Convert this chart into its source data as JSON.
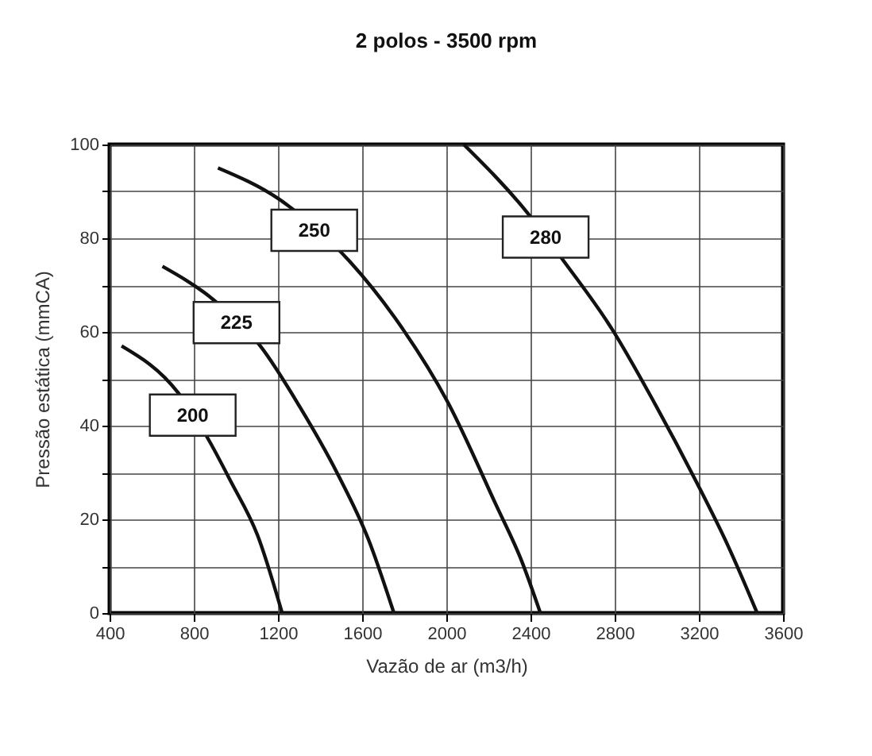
{
  "chart_data": {
    "type": "line",
    "title": "2 polos - 3500 rpm",
    "xlabel": "Vazão de ar (m3/h)",
    "ylabel": "Pressão estática (mmCA)",
    "xlim": [
      400,
      3600
    ],
    "xticks": [
      400,
      800,
      1200,
      1600,
      2000,
      2400,
      2800,
      3200,
      3600
    ],
    "ylim": [
      0,
      100
    ],
    "yticks": [
      0,
      {
        "value": 10,
        "label": null
      },
      20,
      {
        "value": 30,
        "label": null
      },
      40,
      {
        "value": 50,
        "label": null
      },
      60,
      {
        "value": 70,
        "label": null
      },
      80,
      {
        "value": 90,
        "label": null
      },
      100
    ],
    "grid": true,
    "legend": false,
    "series": [
      {
        "name": "200",
        "color": "#111111",
        "x": [
          457,
          726,
          864,
          977,
          1103,
          1220
        ],
        "values": [
          57,
          47,
          37.5,
          28,
          16.6,
          0
        ]
      },
      {
        "name": "225",
        "color": "#111111",
        "x": [
          651,
          890,
          1116,
          1304,
          1480,
          1631,
          1751
        ],
        "values": [
          74,
          67,
          57,
          44,
          30,
          15.6,
          0
        ]
      },
      {
        "name": "250",
        "color": "#111111",
        "x": [
          915,
          1203,
          1542,
          1756,
          2007,
          2233,
          2359,
          2447
        ],
        "values": [
          95,
          88.4,
          75,
          63,
          45,
          23.4,
          11,
          0
        ]
      },
      {
        "name": "280",
        "color": "#111111",
        "x": [
          2083,
          2384,
          2560,
          2786,
          2987,
          3188,
          3339,
          3477
        ],
        "values": [
          100,
          85.5,
          75,
          60.7,
          45,
          28,
          14.3,
          0
        ]
      }
    ]
  }
}
